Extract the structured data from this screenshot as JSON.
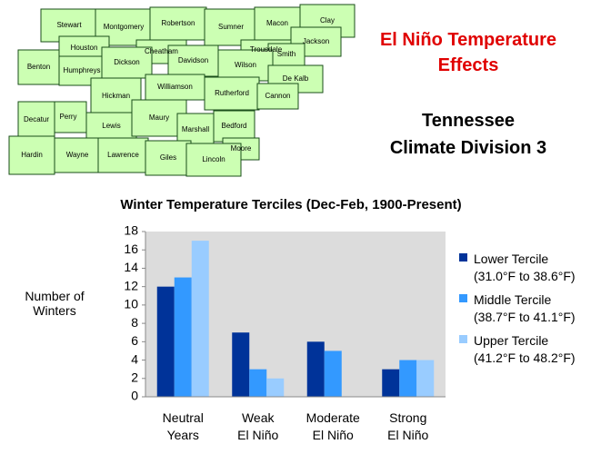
{
  "header": {
    "title": "El Niño Temperature\nEffects",
    "subtitle": "Tennessee\nClimate Division 3"
  },
  "map": {
    "counties": [
      "Stewart",
      "Montgomery",
      "Robertson",
      "Sumner",
      "Macon",
      "Clay",
      "Jackson",
      "Houston",
      "Cheatham",
      "Trousdale",
      "Smith",
      "Benton",
      "Humphreys",
      "Dickson",
      "Davidson",
      "Wilson",
      "De Kalb",
      "Williamson",
      "Rutherford",
      "Cannon",
      "Hickman",
      "Perry",
      "Decatur",
      "Lewis",
      "Maury",
      "Marshall",
      "Bedford",
      "Moore",
      "Hardin",
      "Wayne",
      "Lawrence",
      "Giles",
      "Lincoln"
    ]
  },
  "chart_data": {
    "type": "bar",
    "title": "Winter Temperature Terciles (Dec-Feb, 1900-Present)",
    "y_label": "Number of\nWinters",
    "categories": [
      "Neutral\nYears",
      "Weak\nEl Niño",
      "Moderate\nEl Niño",
      "Strong\nEl Niño"
    ],
    "series": [
      {
        "name": "Lower Tercile\n(31.0°F to 38.6°F)",
        "color": "#003399",
        "values": [
          12,
          7,
          6,
          3
        ]
      },
      {
        "name": "Middle Tercile\n(38.7°F to 41.1°F)",
        "color": "#3399ff",
        "values": [
          13,
          3,
          5,
          4
        ]
      },
      {
        "name": "Upper Tercile\n(41.2°F to 48.2°F)",
        "color": "#99ccff",
        "values": [
          17,
          2,
          0,
          4
        ]
      }
    ],
    "ylim": [
      0,
      18
    ],
    "yticks": [
      0,
      2,
      4,
      6,
      8,
      10,
      12,
      14,
      16,
      18
    ],
    "grid": false
  }
}
